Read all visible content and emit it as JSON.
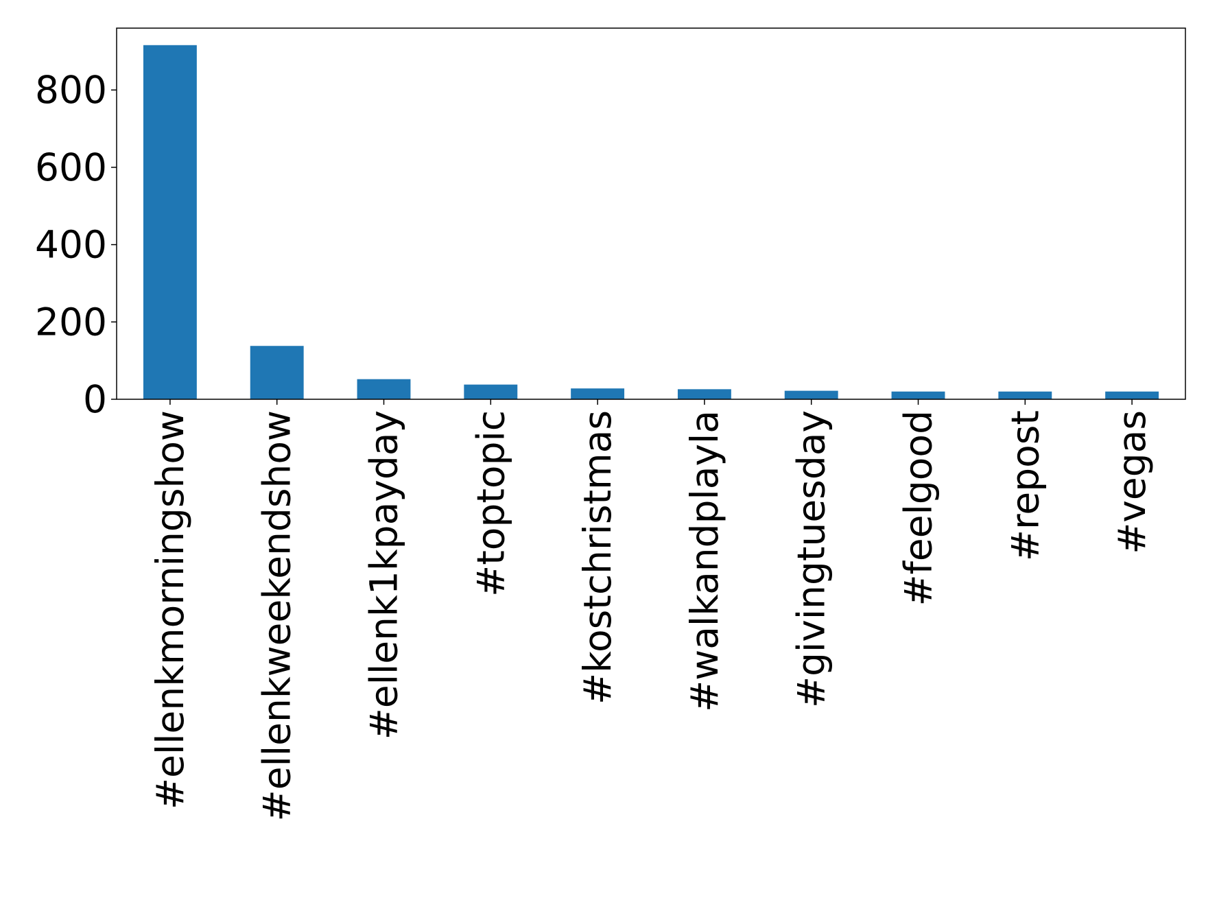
{
  "chart_data": {
    "type": "bar",
    "categories": [
      "#ellenkmorningshow",
      "#ellenkweekendshow",
      "#ellenk1kpayday",
      "#toptopic",
      "#kostchristmas",
      "#walkandplayla",
      "#givingtuesday",
      "#feelgood",
      "#repost",
      "#vegas"
    ],
    "values": [
      916,
      138,
      52,
      38,
      28,
      26,
      22,
      20,
      20,
      20
    ],
    "color": "#1f77b4",
    "ylim": [
      0,
      960
    ],
    "yticks": [
      0,
      200,
      400,
      600,
      800
    ],
    "grid": false
  }
}
